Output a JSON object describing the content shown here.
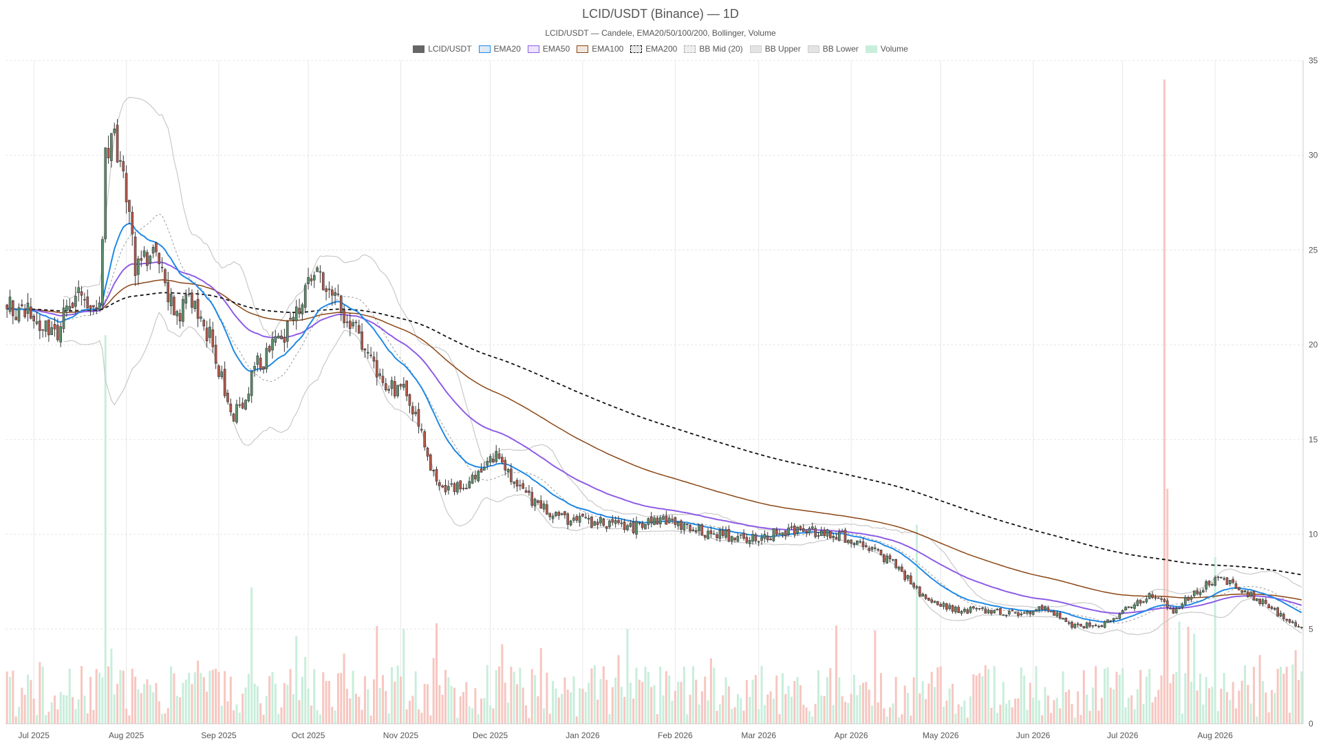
{
  "title": "LCID/USDT (Binance) — 1D",
  "subtitle": "LCID/USDT — Candele, EMA20/50/100/200, Bollinger, Volume",
  "legend": [
    {
      "label": "LCID/USDT",
      "color": "#666666",
      "fill": "#666666",
      "dash": false
    },
    {
      "label": "EMA20",
      "color": "#1e88e5",
      "fill": "#dce9f7",
      "dash": false
    },
    {
      "label": "EMA50",
      "color": "#8e5ce6",
      "fill": "#ece4fb",
      "dash": false
    },
    {
      "label": "EMA100",
      "color": "#8b4513",
      "fill": "#f1e6dc",
      "dash": false
    },
    {
      "label": "EMA200",
      "color": "#111111",
      "fill": "#e8e8e8",
      "dash": true
    },
    {
      "label": "BB Mid (20)",
      "color": "#aaaaaa",
      "fill": "#eeeeee",
      "dash": true
    },
    {
      "label": "BB Upper",
      "color": "#cccccc",
      "fill": "#e4e4e4",
      "dash": false
    },
    {
      "label": "BB Lower",
      "color": "#cccccc",
      "fill": "#e4e4e4",
      "dash": false
    },
    {
      "label": "Volume",
      "color": "#c8eedb",
      "fill": "#c8eedb",
      "dash": false
    }
  ],
  "chart_data": {
    "type": "candlestick",
    "x_ticks": [
      "Jul 2025",
      "Aug 2025",
      "Sep 2025",
      "Oct 2025",
      "Nov 2025",
      "Dec 2025",
      "Jan 2026",
      "Feb 2026",
      "Mar 2026",
      "Apr 2026",
      "May 2026",
      "Jun 2026",
      "Jul 2026",
      "Aug 2026"
    ],
    "x_range": [
      "2025-06-22",
      "2026-08-30"
    ],
    "y_ticks": [
      0,
      5,
      10,
      15,
      20,
      25,
      30,
      35
    ],
    "ylim": [
      0,
      35
    ],
    "grid": true,
    "legend_position": "top-center",
    "colors": {
      "up": "#5a8f6a",
      "down": "#b5584a",
      "vol_up": "#c8eedb",
      "vol_down": "#f7c6c0"
    },
    "close_anchors": [
      [
        "2025-06-22",
        22.0
      ],
      [
        "2025-07-01",
        21.5
      ],
      [
        "2025-07-08",
        20.5
      ],
      [
        "2025-07-15",
        22.5
      ],
      [
        "2025-07-23",
        22.5
      ],
      [
        "2025-07-25",
        30.0
      ],
      [
        "2025-07-28",
        31.0
      ],
      [
        "2025-07-31",
        29.5
      ],
      [
        "2025-08-04",
        24.0
      ],
      [
        "2025-08-08",
        24.5
      ],
      [
        "2025-08-11",
        24.5
      ],
      [
        "2025-08-18",
        21.5
      ],
      [
        "2025-08-22",
        23.0
      ],
      [
        "2025-08-30",
        20.0
      ],
      [
        "2025-09-06",
        16.0
      ],
      [
        "2025-09-14",
        19.0
      ],
      [
        "2025-09-21",
        20.0
      ],
      [
        "2025-09-28",
        22.0
      ],
      [
        "2025-10-04",
        24.5
      ],
      [
        "2025-10-08",
        22.5
      ],
      [
        "2025-10-14",
        21.5
      ],
      [
        "2025-10-19",
        20.0
      ],
      [
        "2025-10-26",
        18.0
      ],
      [
        "2025-11-03",
        17.5
      ],
      [
        "2025-11-08",
        15.5
      ],
      [
        "2025-11-13",
        12.5
      ],
      [
        "2025-11-20",
        12.5
      ],
      [
        "2025-11-26",
        13.0
      ],
      [
        "2025-12-03",
        14.0
      ],
      [
        "2025-12-10",
        12.5
      ],
      [
        "2025-12-17",
        11.5
      ],
      [
        "2025-12-27",
        10.8
      ],
      [
        "2026-01-08",
        10.6
      ],
      [
        "2026-01-17",
        10.3
      ],
      [
        "2026-01-24",
        10.8
      ],
      [
        "2026-02-02",
        10.5
      ],
      [
        "2026-02-14",
        10.0
      ],
      [
        "2026-02-28",
        9.8
      ],
      [
        "2026-03-12",
        10.2
      ],
      [
        "2026-03-26",
        10.0
      ],
      [
        "2026-04-05",
        9.5
      ],
      [
        "2026-04-14",
        8.6
      ],
      [
        "2026-04-21",
        7.5
      ],
      [
        "2026-04-26",
        6.5
      ],
      [
        "2026-05-06",
        6.0
      ],
      [
        "2026-05-16",
        6.0
      ],
      [
        "2026-05-29",
        5.8
      ],
      [
        "2026-06-05",
        6.2
      ],
      [
        "2026-06-13",
        5.2
      ],
      [
        "2026-06-24",
        5.2
      ],
      [
        "2026-07-04",
        6.2
      ],
      [
        "2026-07-10",
        6.8
      ],
      [
        "2026-07-18",
        6.0
      ],
      [
        "2026-07-26",
        7.0
      ],
      [
        "2026-08-02",
        7.8
      ],
      [
        "2026-08-09",
        7.2
      ],
      [
        "2026-08-16",
        6.5
      ],
      [
        "2026-08-24",
        5.6
      ],
      [
        "2026-08-30",
        5.0
      ]
    ],
    "volume_spikes": [
      [
        "2025-07-25",
        20.5
      ],
      [
        "2025-09-12",
        7.2
      ],
      [
        "2025-11-13",
        5.3
      ],
      [
        "2026-01-16",
        5.0
      ],
      [
        "2026-04-23",
        10.5
      ],
      [
        "2026-07-15",
        34.0
      ],
      [
        "2026-07-16",
        12.4
      ],
      [
        "2026-08-01",
        8.8
      ]
    ],
    "series": [
      {
        "name": "LCID/USDT",
        "kind": "candles"
      },
      {
        "name": "EMA20",
        "period": 20
      },
      {
        "name": "EMA50",
        "period": 50
      },
      {
        "name": "EMA100",
        "period": 100
      },
      {
        "name": "EMA200",
        "period": 200
      },
      {
        "name": "BB Mid (20)",
        "period": 20
      },
      {
        "name": "BB Upper",
        "period": 20,
        "std": 2
      },
      {
        "name": "BB Lower",
        "period": 20,
        "std": 2
      },
      {
        "name": "Volume",
        "kind": "bars"
      }
    ]
  }
}
